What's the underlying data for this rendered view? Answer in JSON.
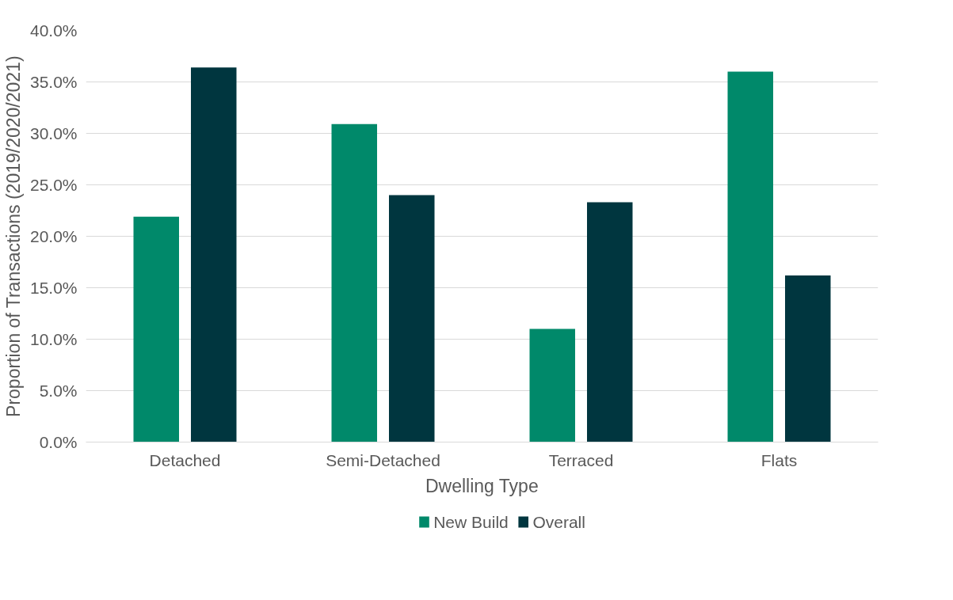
{
  "chart_data": {
    "type": "bar",
    "xlabel": "Dwelling Type",
    "ylabel": "Proportion of Transactions (2019/2020/2021)",
    "categories": [
      "Detached",
      "Semi-Detached",
      "Terraced",
      "Flats"
    ],
    "series": [
      {
        "name": "New Build",
        "color": "#00896a",
        "values": [
          21.9,
          30.9,
          11.0,
          36.0
        ]
      },
      {
        "name": "Overall",
        "color": "#00363f",
        "values": [
          36.4,
          24.0,
          23.3,
          16.2
        ]
      }
    ],
    "ylim": [
      0,
      40
    ],
    "yticks": [
      {
        "value": 0,
        "label": "0.0%"
      },
      {
        "value": 5,
        "label": "5.0%"
      },
      {
        "value": 10,
        "label": "10.0%"
      },
      {
        "value": 15,
        "label": "15.0%"
      },
      {
        "value": 20,
        "label": "20.0%"
      },
      {
        "value": 25,
        "label": "25.0%"
      },
      {
        "value": 30,
        "label": "30.0%"
      },
      {
        "value": 35,
        "label": "35.0%"
      },
      {
        "value": 40,
        "label": "40.0%"
      }
    ],
    "grid": "y",
    "legend": "bottom"
  }
}
